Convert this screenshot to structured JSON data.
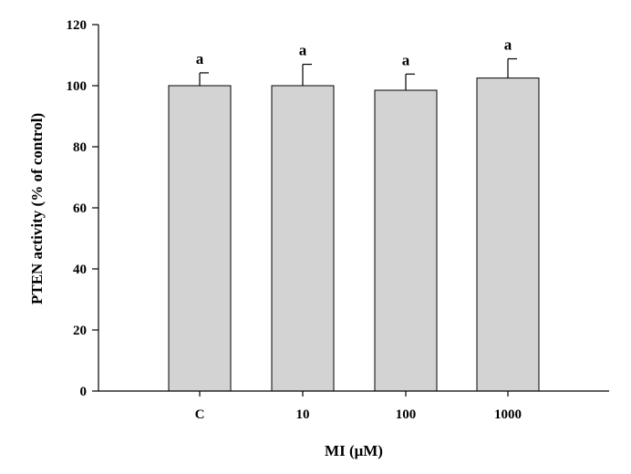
{
  "chart_data": {
    "type": "bar",
    "categories": [
      "C",
      "10",
      "100",
      "1000"
    ],
    "series": [
      {
        "values": [
          100,
          100,
          98.5,
          102.5
        ],
        "errors": [
          4.2,
          7,
          5.3,
          6.3
        ],
        "annotations": [
          "a",
          "a",
          "a",
          "a"
        ]
      }
    ],
    "xlabel": "MI (μM)",
    "ylabel": "PTEN activity (% of control)",
    "ylim": [
      0,
      120
    ],
    "yticks": [
      0,
      20,
      40,
      60,
      80,
      100,
      120
    ],
    "grid": false,
    "legend": "none",
    "colors": {
      "bar_fill": "#d3d3d3",
      "bar_stroke": "#000000",
      "axis": "#000000",
      "error_bar": "#000000"
    }
  }
}
